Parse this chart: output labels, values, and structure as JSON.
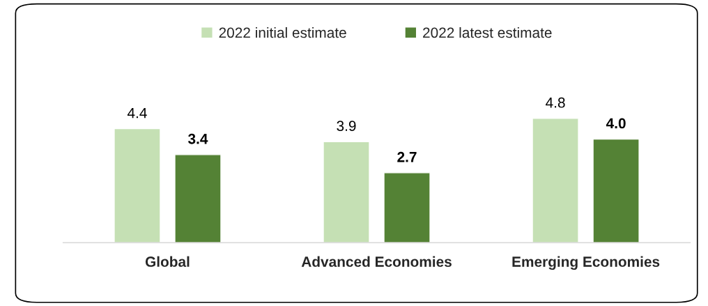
{
  "chart_data": {
    "type": "bar",
    "categories": [
      "Global",
      "Advanced Economies",
      "Emerging Economies"
    ],
    "series": [
      {
        "name": "2022 initial estimate",
        "color": "#c5e0b4",
        "values": [
          4.4,
          3.9,
          4.8
        ],
        "value_labels": [
          "4.4",
          "3.9",
          "4.8"
        ]
      },
      {
        "name": "2022 latest estimate",
        "color": "#548235",
        "values": [
          3.4,
          2.7,
          4.0
        ],
        "value_labels": [
          "3.4",
          "2.7",
          "4.0"
        ]
      }
    ],
    "legend": "top",
    "grid": false
  }
}
